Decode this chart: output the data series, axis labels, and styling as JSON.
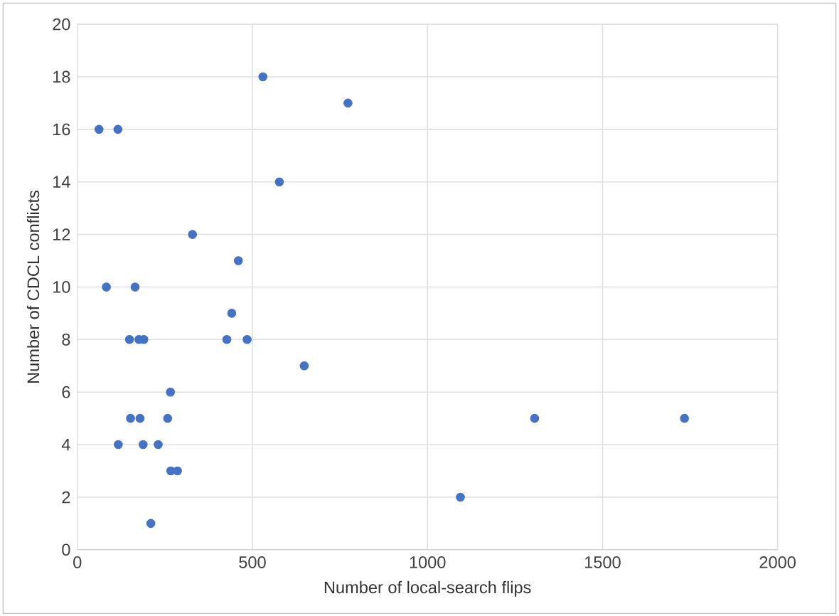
{
  "chart_data": {
    "type": "scatter",
    "xlabel": "Number of local-search flips",
    "ylabel": "Number of CDCL conflicts",
    "x": [
      530,
      773,
      62,
      116,
      577,
      329,
      460,
      83,
      165,
      441,
      149,
      176,
      190,
      427,
      485,
      648,
      266,
      152,
      179,
      258,
      117,
      188,
      231,
      267,
      286,
      1094,
      210,
      1306,
      1734
    ],
    "values": [
      18,
      17,
      16,
      16,
      14,
      12,
      11,
      10,
      10,
      9,
      8,
      8,
      8,
      8,
      8,
      7,
      6,
      5,
      5,
      5,
      4,
      4,
      4,
      3,
      3,
      2,
      1,
      5,
      5
    ],
    "color": "#4472c4",
    "marker": "circle",
    "xlim": [
      0,
      2000
    ],
    "xticks": [
      0,
      500,
      1000,
      1500,
      2000
    ],
    "ylim": [
      0,
      20
    ],
    "yticks": [
      0,
      2,
      4,
      6,
      8,
      10,
      12,
      14,
      16,
      18,
      20
    ],
    "grid": true
  }
}
